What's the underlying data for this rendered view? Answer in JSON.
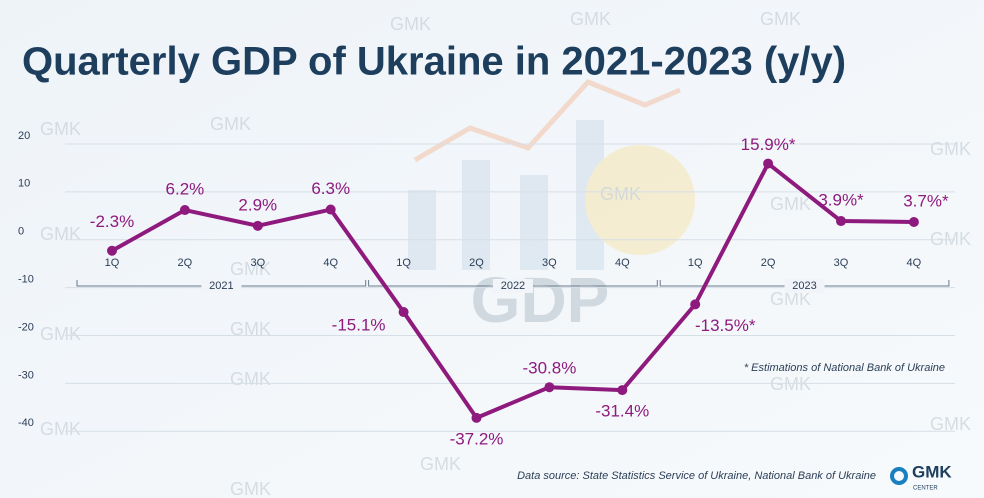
{
  "chart_data": {
    "type": "line",
    "title": "Quarterly GDP of Ukraine in 2021-2023 (y/y)",
    "categories": [
      "1Q",
      "2Q",
      "3Q",
      "4Q",
      "1Q",
      "2Q",
      "3Q",
      "4Q",
      "1Q",
      "2Q",
      "3Q",
      "4Q"
    ],
    "groups": [
      {
        "label": "2021",
        "start": 0,
        "end": 3
      },
      {
        "label": "2022",
        "start": 4,
        "end": 7
      },
      {
        "label": "2023",
        "start": 8,
        "end": 11
      }
    ],
    "series": [
      {
        "name": "GDP y/y",
        "color": "#8e1a7e",
        "values": [
          -2.3,
          6.2,
          2.9,
          6.3,
          -15.1,
          -37.2,
          -30.8,
          -31.4,
          -13.5,
          15.9,
          3.9,
          3.7
        ],
        "value_labels": [
          "-2.3%",
          "6.2%",
          "2.9%",
          "6.3%",
          "-15.1%",
          "-37.2%",
          "-30.8%",
          "-31.4%",
          "-13.5%*",
          "15.9%*",
          "3.9%*",
          "3.7%*"
        ]
      }
    ],
    "ylim": [
      -46,
      25
    ],
    "yticks": [
      20,
      10,
      0,
      -10,
      -20,
      -30,
      -40
    ],
    "grid": true,
    "footnote": "* Estimations of National Bank of Ukraine",
    "source": "Data source: State Statistics Service of Ukraine, National Bank of Ukraine",
    "logo": "GMK",
    "logo_sub": "CENTER",
    "watermark": "GMK",
    "background_text": "GDP"
  }
}
